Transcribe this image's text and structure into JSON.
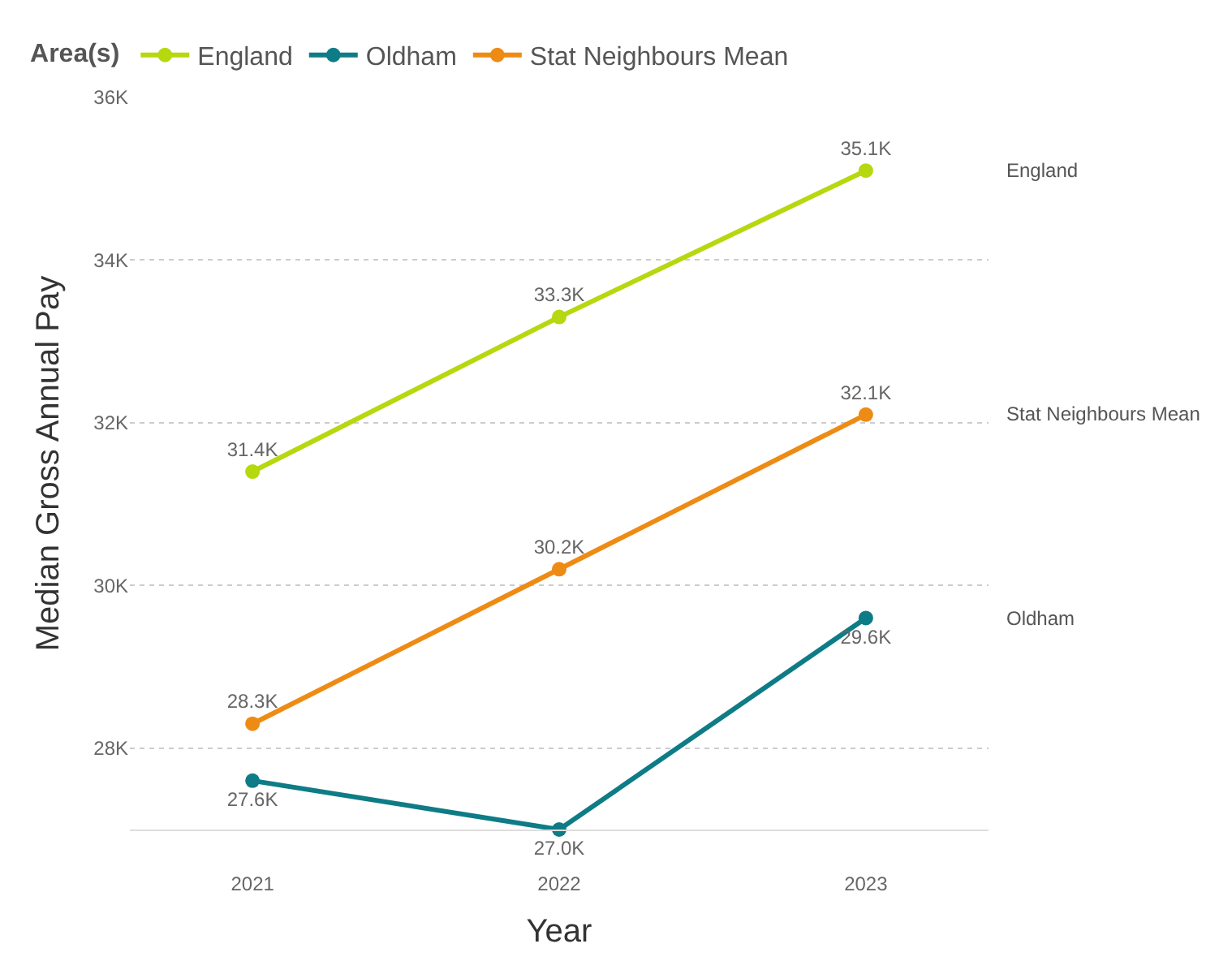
{
  "chart_data": {
    "type": "line",
    "xlabel": "Year",
    "ylabel": "Median Gross Annual Pay",
    "legend_title": "Area(s)",
    "categories": [
      "2021",
      "2022",
      "2023"
    ],
    "series": [
      {
        "name": "England",
        "color": "#b5d80f",
        "values": [
          31400,
          33300,
          35100
        ],
        "value_labels": [
          "31.4K",
          "33.3K",
          "35.1K"
        ]
      },
      {
        "name": "Oldham",
        "color": "#0e7c86",
        "values": [
          27600,
          27000,
          29600
        ],
        "value_labels": [
          "27.6K",
          "27.0K",
          "29.6K"
        ]
      },
      {
        "name": "Stat Neighbours Mean",
        "color": "#ee8b14",
        "values": [
          28300,
          30200,
          32100
        ],
        "value_labels": [
          "28.3K",
          "30.2K",
          "32.1K"
        ]
      }
    ],
    "ylim": [
      27000,
      36000
    ],
    "yticks": [
      {
        "value": 28000,
        "label": "28K"
      },
      {
        "value": 30000,
        "label": "30K"
      },
      {
        "value": 32000,
        "label": "32K"
      },
      {
        "value": 34000,
        "label": "34K"
      },
      {
        "value": 36000,
        "label": "36K"
      }
    ],
    "grid": "y",
    "legend": "top left",
    "marker": "circle",
    "line_style": "solid"
  }
}
